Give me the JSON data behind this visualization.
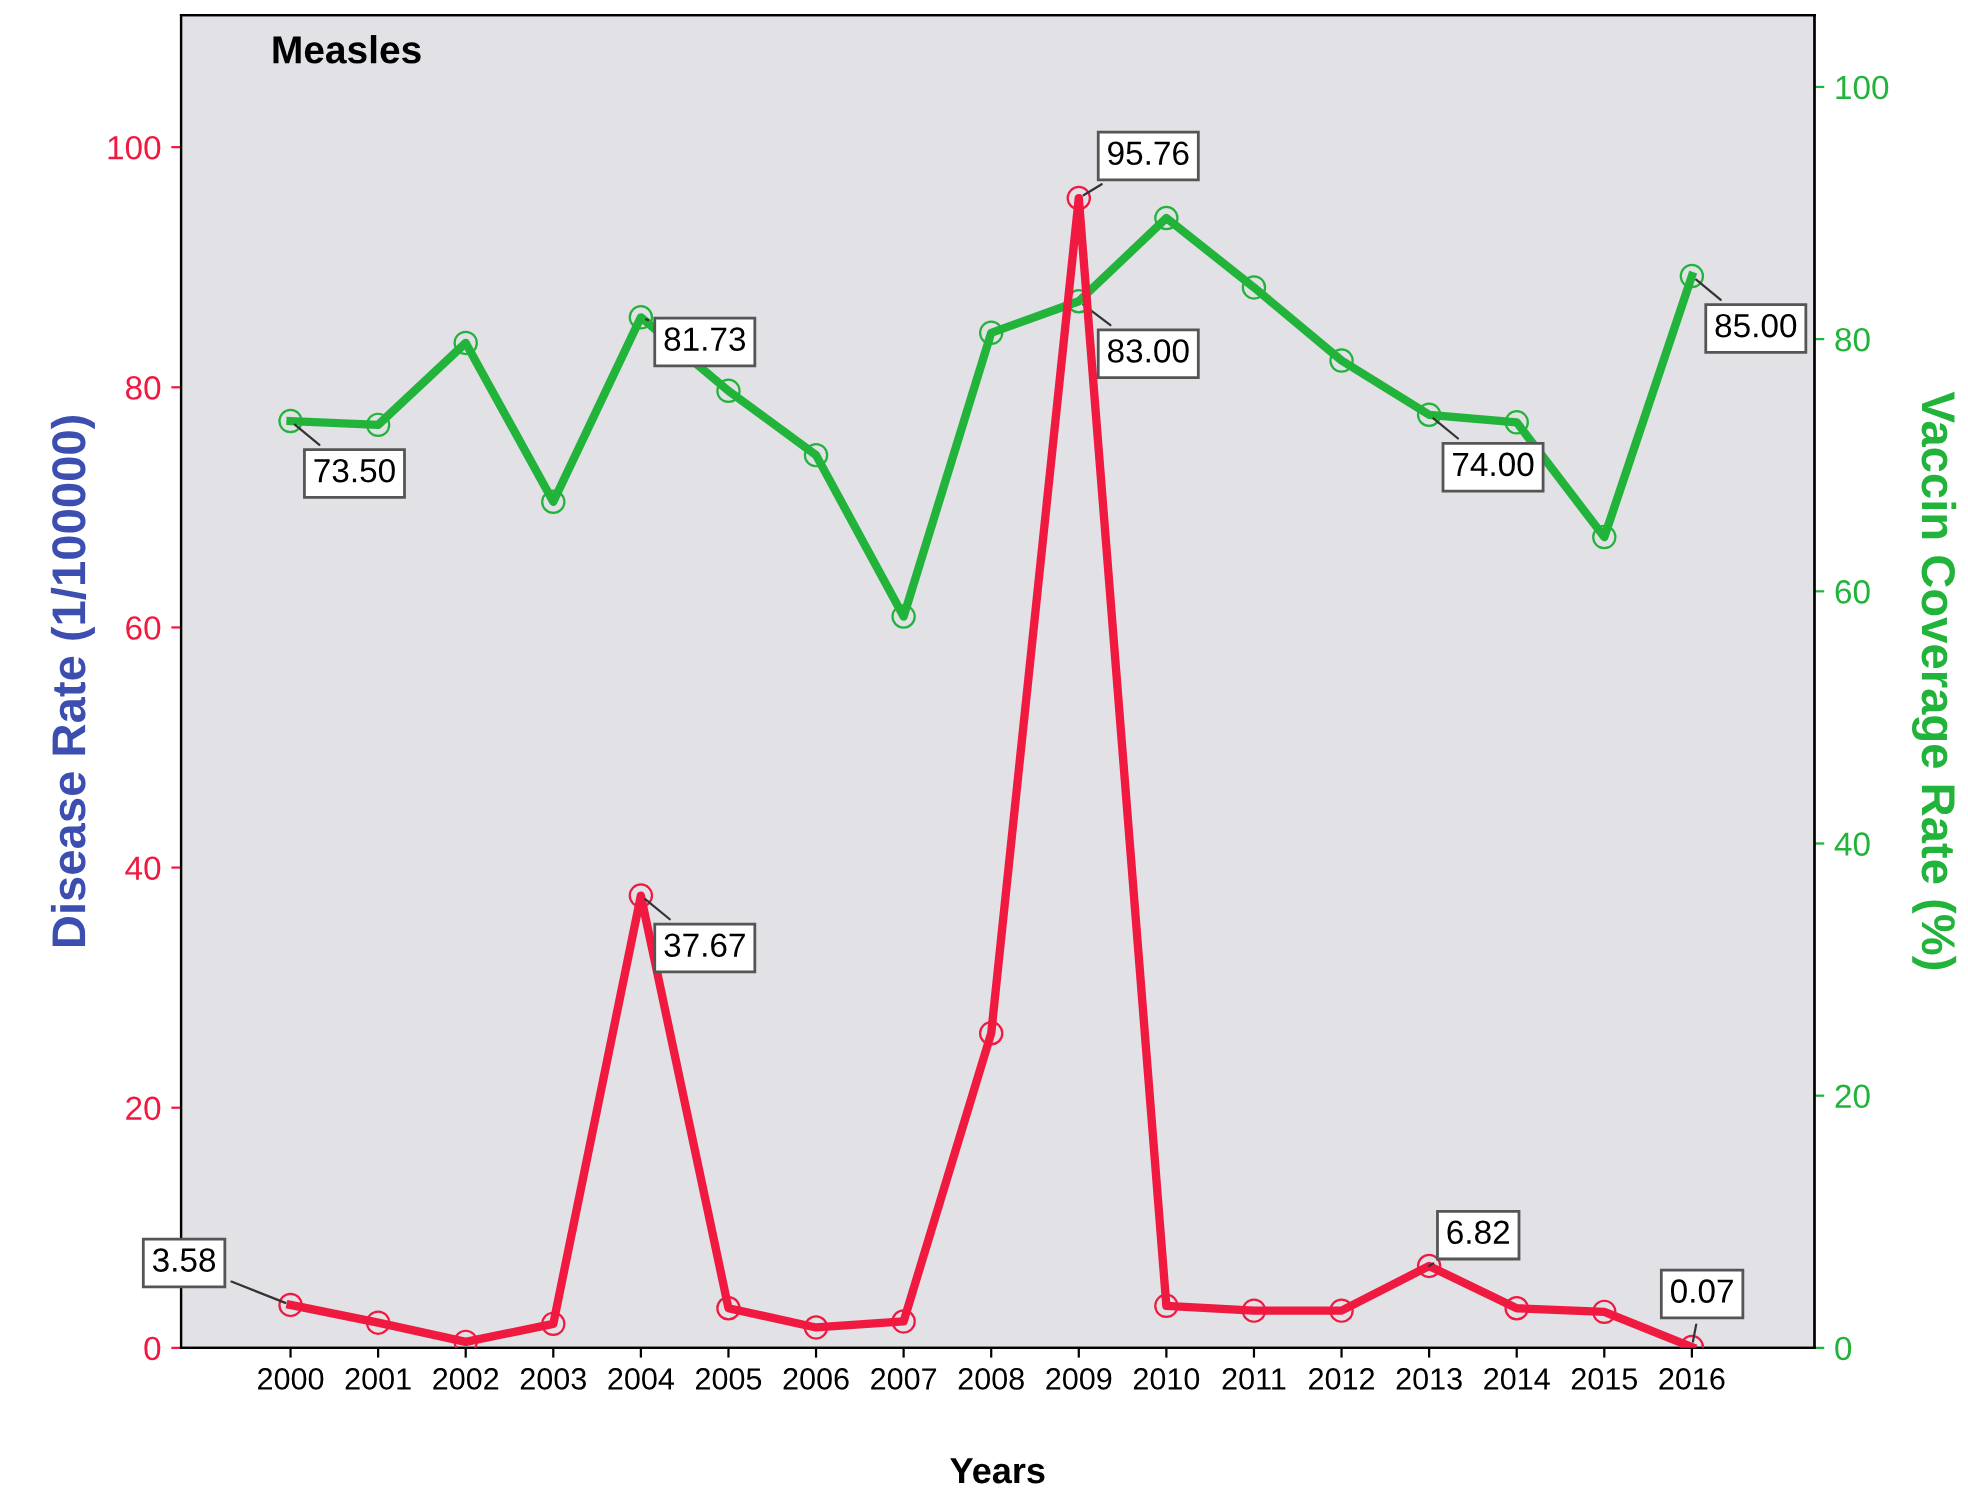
{
  "chart_data": {
    "type": "line",
    "title": "Measles",
    "xlabel": "Years",
    "ylabel": "Disease Rate (1/100000)",
    "y2label": "Vaccin Coverage Rate (%)",
    "categories": [
      "2000",
      "2001",
      "2002",
      "2003",
      "2004",
      "2005",
      "2006",
      "2007",
      "2008",
      "2009",
      "2010",
      "2011",
      "2012",
      "2013",
      "2014",
      "2015",
      "2016"
    ],
    "series": [
      {
        "color": "#f0193f",
        "values": [
          3.58,
          2.1,
          0.5,
          2.0,
          37.67,
          3.3,
          1.7,
          2.2,
          26.2,
          95.76,
          3.5,
          3.1,
          3.1,
          6.82,
          3.3,
          3.0,
          0.07
        ],
        "value_labels": [
          "3.58",
          null,
          null,
          null,
          "37.67",
          null,
          null,
          null,
          null,
          "95.76",
          null,
          null,
          null,
          "6.82",
          null,
          null,
          "0.07"
        ]
      },
      {
        "color": "#22b33a",
        "axis": "y2",
        "values": [
          73.5,
          73.2,
          79.7,
          67.1,
          81.73,
          75.9,
          70.8,
          58.0,
          80.5,
          83.0,
          89.6,
          84.1,
          78.3,
          74.0,
          73.4,
          64.3,
          85.0
        ],
        "value_labels": [
          "73.50",
          null,
          null,
          null,
          "81.73",
          null,
          null,
          null,
          null,
          "83.00",
          null,
          null,
          null,
          "74.00",
          null,
          null,
          "85.00"
        ]
      }
    ],
    "ylim": [
      0,
      111
    ],
    "yticks": [
      0,
      20,
      40,
      60,
      80,
      100
    ],
    "y2lim": [
      0,
      105.7
    ],
    "y2ticks": [
      0,
      20,
      40,
      60,
      80,
      100
    ],
    "marker": "circle",
    "line_style": "solid",
    "grid": false,
    "legend": false
  }
}
